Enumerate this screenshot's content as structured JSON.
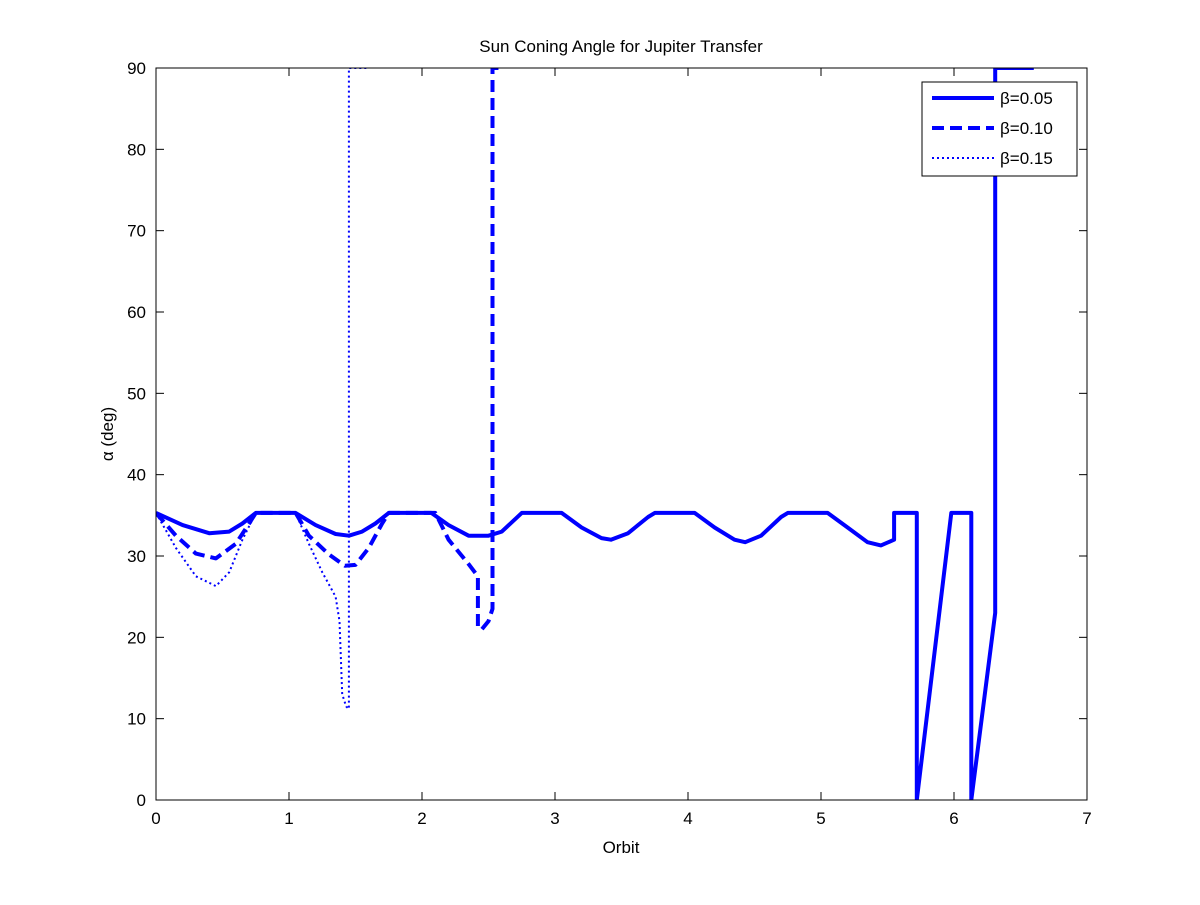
{
  "chart_data": {
    "type": "line",
    "title": "Sun Coning Angle for Jupiter Transfer",
    "xlabel": "Orbit",
    "ylabel": "α (deg)",
    "xlim": [
      0,
      7
    ],
    "ylim": [
      0,
      90
    ],
    "xticks": [
      0,
      1,
      2,
      3,
      4,
      5,
      6,
      7
    ],
    "yticks": [
      0,
      10,
      20,
      30,
      40,
      50,
      60,
      70,
      80,
      90
    ],
    "xtick_labels": [
      "0",
      "1",
      "2",
      "3",
      "4",
      "5",
      "6",
      "7"
    ],
    "ytick_labels": [
      "0",
      "10",
      "20",
      "30",
      "40",
      "50",
      "60",
      "70",
      "80",
      "90"
    ],
    "grid": false,
    "legend_position": "top-right",
    "series": [
      {
        "name": "β=0.05",
        "style": "solid",
        "color": "#0000ff",
        "x": [
          0,
          0.2,
          0.4,
          0.55,
          0.65,
          0.75,
          1.05,
          1.2,
          1.35,
          1.45,
          1.55,
          1.65,
          1.75,
          2.07,
          2.2,
          2.35,
          2.5,
          2.6,
          2.75,
          3.05,
          3.2,
          3.35,
          3.42,
          3.55,
          3.7,
          3.75,
          4.05,
          4.2,
          4.35,
          4.43,
          4.55,
          4.7,
          4.75,
          5.05,
          5.2,
          5.35,
          5.45,
          5.52,
          5.55,
          5.55,
          5.72,
          5.72,
          5.72,
          5.98,
          6.13,
          6.13,
          6.13,
          6.31,
          6.31,
          6.6
        ],
        "y": [
          35.3,
          33.8,
          32.8,
          33.0,
          34.0,
          35.3,
          35.3,
          33.8,
          32.7,
          32.5,
          33.0,
          34.0,
          35.3,
          35.3,
          33.8,
          32.5,
          32.5,
          33.0,
          35.3,
          35.3,
          33.5,
          32.2,
          32.0,
          32.8,
          34.8,
          35.3,
          35.3,
          33.5,
          32.0,
          31.7,
          32.5,
          34.8,
          35.3,
          35.3,
          33.5,
          31.7,
          31.3,
          31.8,
          32.0,
          35.3,
          35.3,
          35.3,
          0,
          35.3,
          35.3,
          35.3,
          0,
          23,
          90,
          90
        ]
      },
      {
        "name": "β=0.10",
        "style": "dashed",
        "color": "#0000ff",
        "x": [
          0,
          0.15,
          0.3,
          0.45,
          0.6,
          0.7,
          0.75,
          1.05,
          1.15,
          1.3,
          1.42,
          1.5,
          1.6,
          1.7,
          1.75,
          2.1,
          2.2,
          2.35,
          2.42,
          2.42,
          2.45,
          2.5,
          2.53,
          2.53,
          2.53,
          2.6
        ],
        "y": [
          35.3,
          32.5,
          30.3,
          29.7,
          31.5,
          34.0,
          35.3,
          35.3,
          32.5,
          30.2,
          28.8,
          28.9,
          31.0,
          34.0,
          35.3,
          35.3,
          32.0,
          29.0,
          27.5,
          21.2,
          21.0,
          22.0,
          23.5,
          35.3,
          90,
          90
        ]
      },
      {
        "name": "β=0.15",
        "style": "dotted",
        "color": "#0000ff",
        "x": [
          0,
          0.15,
          0.3,
          0.45,
          0.55,
          0.65,
          0.75,
          1.05,
          1.15,
          1.25,
          1.35,
          1.38,
          1.4,
          1.43,
          1.45,
          1.45,
          1.45,
          1.6
        ],
        "y": [
          35.3,
          31.0,
          27.5,
          26.3,
          28.0,
          32.0,
          35.3,
          35.3,
          31.5,
          28.0,
          25.0,
          22.0,
          13.0,
          11.5,
          11.2,
          35.3,
          90,
          90
        ]
      }
    ]
  }
}
